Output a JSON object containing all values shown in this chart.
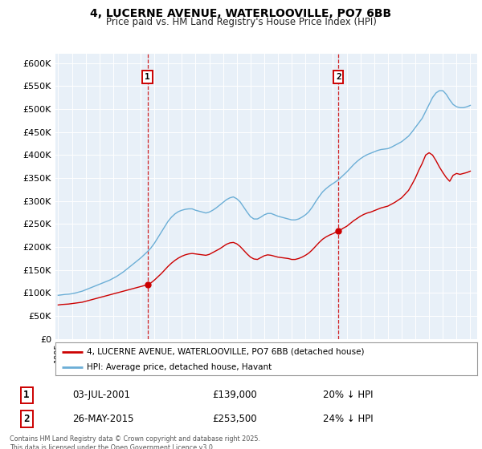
{
  "title_line1": "4, LUCERNE AVENUE, WATERLOOVILLE, PO7 6BB",
  "title_line2": "Price paid vs. HM Land Registry's House Price Index (HPI)",
  "bg_white": "#ffffff",
  "plot_bg_color": "#e8f0f8",
  "hpi_color": "#6baed6",
  "price_color": "#cc0000",
  "vline_color": "#cc0000",
  "grid_color": "#ffffff",
  "ylim": [
    0,
    620000
  ],
  "yticks": [
    0,
    50000,
    100000,
    150000,
    200000,
    250000,
    300000,
    350000,
    400000,
    450000,
    500000,
    550000,
    600000
  ],
  "legend_label_red": "4, LUCERNE AVENUE, WATERLOOVILLE, PO7 6BB (detached house)",
  "legend_label_blue": "HPI: Average price, detached house, Havant",
  "sale1_date": "03-JUL-2001",
  "sale1_price": 139000,
  "sale1_note": "20% ↓ HPI",
  "sale1_x": 2001.5,
  "sale2_date": "26-MAY-2015",
  "sale2_price": 253500,
  "sale2_note": "24% ↓ HPI",
  "sale2_x": 2015.4,
  "footnote": "Contains HM Land Registry data © Crown copyright and database right 2025.\nThis data is licensed under the Open Government Licence v3.0.",
  "hpi_years": [
    1995.0,
    1995.25,
    1995.5,
    1995.75,
    1996.0,
    1996.25,
    1996.5,
    1996.75,
    1997.0,
    1997.25,
    1997.5,
    1997.75,
    1998.0,
    1998.25,
    1998.5,
    1998.75,
    1999.0,
    1999.25,
    1999.5,
    1999.75,
    2000.0,
    2000.25,
    2000.5,
    2000.75,
    2001.0,
    2001.25,
    2001.5,
    2001.75,
    2002.0,
    2002.25,
    2002.5,
    2002.75,
    2003.0,
    2003.25,
    2003.5,
    2003.75,
    2004.0,
    2004.25,
    2004.5,
    2004.75,
    2005.0,
    2005.25,
    2005.5,
    2005.75,
    2006.0,
    2006.25,
    2006.5,
    2006.75,
    2007.0,
    2007.25,
    2007.5,
    2007.75,
    2008.0,
    2008.25,
    2008.5,
    2008.75,
    2009.0,
    2009.25,
    2009.5,
    2009.75,
    2010.0,
    2010.25,
    2010.5,
    2010.75,
    2011.0,
    2011.25,
    2011.5,
    2011.75,
    2012.0,
    2012.25,
    2012.5,
    2012.75,
    2013.0,
    2013.25,
    2013.5,
    2013.75,
    2014.0,
    2014.25,
    2014.5,
    2014.75,
    2015.0,
    2015.25,
    2015.5,
    2015.75,
    2016.0,
    2016.25,
    2016.5,
    2016.75,
    2017.0,
    2017.25,
    2017.5,
    2017.75,
    2018.0,
    2018.25,
    2018.5,
    2018.75,
    2019.0,
    2019.25,
    2019.5,
    2019.75,
    2020.0,
    2020.25,
    2020.5,
    2020.75,
    2021.0,
    2021.25,
    2021.5,
    2021.75,
    2022.0,
    2022.25,
    2022.5,
    2022.75,
    2023.0,
    2023.25,
    2023.5,
    2023.75,
    2024.0,
    2024.25,
    2024.5,
    2024.75,
    2025.0
  ],
  "hpi_values": [
    95000,
    96000,
    97000,
    97500,
    98500,
    100000,
    102000,
    104000,
    107000,
    110000,
    113000,
    116000,
    119000,
    122000,
    125000,
    128000,
    132000,
    136000,
    141000,
    146000,
    152000,
    158000,
    164000,
    170000,
    176000,
    183000,
    190000,
    198000,
    208000,
    220000,
    232000,
    244000,
    256000,
    265000,
    272000,
    277000,
    280000,
    282000,
    283000,
    283000,
    280000,
    278000,
    276000,
    274000,
    276000,
    280000,
    285000,
    291000,
    297000,
    303000,
    307000,
    309000,
    305000,
    298000,
    287000,
    276000,
    266000,
    261000,
    261000,
    265000,
    270000,
    273000,
    273000,
    270000,
    267000,
    265000,
    263000,
    261000,
    259000,
    259000,
    261000,
    265000,
    270000,
    277000,
    287000,
    299000,
    310000,
    320000,
    327000,
    333000,
    338000,
    343000,
    349000,
    356000,
    363000,
    371000,
    379000,
    386000,
    392000,
    397000,
    401000,
    404000,
    407000,
    410000,
    412000,
    413000,
    414000,
    417000,
    421000,
    425000,
    429000,
    435000,
    441000,
    450000,
    460000,
    470000,
    480000,
    495000,
    510000,
    525000,
    535000,
    540000,
    540000,
    532000,
    520000,
    510000,
    505000,
    503000,
    503000,
    505000,
    508000
  ],
  "price_years": [
    1995.0,
    1995.25,
    1995.5,
    1995.75,
    1996.0,
    1996.25,
    1996.5,
    1996.75,
    1997.0,
    1997.25,
    1997.5,
    1997.75,
    1998.0,
    1998.25,
    1998.5,
    1998.75,
    1999.0,
    1999.25,
    1999.5,
    1999.75,
    2000.0,
    2000.25,
    2000.5,
    2000.75,
    2001.0,
    2001.25,
    2001.5,
    2001.75,
    2002.0,
    2002.25,
    2002.5,
    2002.75,
    2003.0,
    2003.25,
    2003.5,
    2003.75,
    2004.0,
    2004.25,
    2004.5,
    2004.75,
    2005.0,
    2005.25,
    2005.5,
    2005.75,
    2006.0,
    2006.25,
    2006.5,
    2006.75,
    2007.0,
    2007.25,
    2007.5,
    2007.75,
    2008.0,
    2008.25,
    2008.5,
    2008.75,
    2009.0,
    2009.25,
    2009.5,
    2009.75,
    2010.0,
    2010.25,
    2010.5,
    2010.75,
    2011.0,
    2011.25,
    2011.5,
    2011.75,
    2012.0,
    2012.25,
    2012.5,
    2012.75,
    2013.0,
    2013.25,
    2013.5,
    2013.75,
    2014.0,
    2014.25,
    2014.5,
    2014.75,
    2015.0,
    2015.25,
    2015.5,
    2015.75,
    2016.0,
    2016.25,
    2016.5,
    2016.75,
    2017.0,
    2017.25,
    2017.5,
    2017.75,
    2018.0,
    2018.25,
    2018.5,
    2018.75,
    2019.0,
    2019.25,
    2019.5,
    2019.75,
    2020.0,
    2020.25,
    2020.5,
    2020.75,
    2021.0,
    2021.25,
    2021.5,
    2021.75,
    2022.0,
    2022.25,
    2022.5,
    2022.75,
    2023.0,
    2023.25,
    2023.5,
    2023.75,
    2024.0,
    2024.25,
    2024.5,
    2024.75,
    2025.0
  ],
  "price_values": [
    74000,
    75000,
    75500,
    76000,
    77000,
    78000,
    79000,
    80000,
    82000,
    84000,
    86000,
    88000,
    90000,
    92000,
    94000,
    96000,
    98000,
    100000,
    102000,
    104000,
    106000,
    108000,
    110000,
    112000,
    114000,
    116000,
    118000,
    122000,
    128000,
    135000,
    142000,
    150000,
    158000,
    165000,
    171000,
    176000,
    180000,
    183000,
    185000,
    186000,
    185000,
    184000,
    183000,
    182000,
    184000,
    188000,
    192000,
    196000,
    201000,
    206000,
    209000,
    210000,
    207000,
    201000,
    193000,
    185000,
    178000,
    174000,
    173000,
    177000,
    181000,
    183000,
    182000,
    180000,
    178000,
    177000,
    176000,
    175000,
    173000,
    173000,
    175000,
    178000,
    182000,
    187000,
    194000,
    202000,
    210000,
    217000,
    222000,
    226000,
    229000,
    233000,
    236000,
    241000,
    245000,
    251000,
    257000,
    262000,
    267000,
    271000,
    274000,
    276000,
    279000,
    282000,
    285000,
    287000,
    289000,
    293000,
    297000,
    302000,
    307000,
    315000,
    323000,
    336000,
    350000,
    367000,
    382000,
    400000,
    405000,
    400000,
    388000,
    374000,
    362000,
    351000,
    343000,
    356000,
    360000,
    358000,
    360000,
    362000,
    365000
  ]
}
